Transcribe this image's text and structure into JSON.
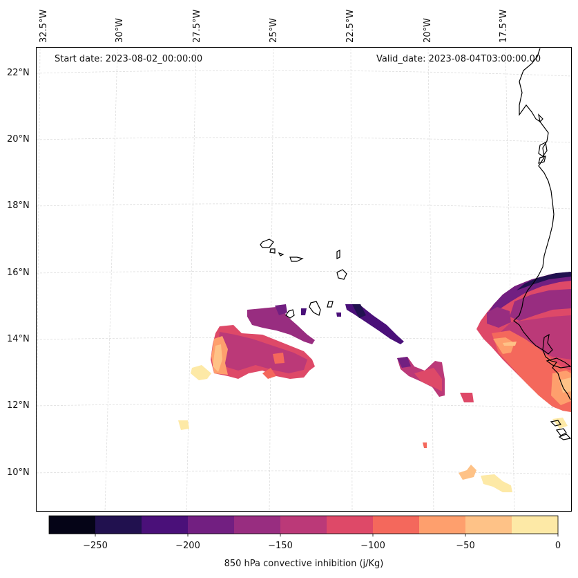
{
  "header": {
    "start_date": "Start date: 2023-08-02_00:00:00",
    "valid_date": "Valid_date: 2023-08-04T03:00:00.00"
  },
  "longitude_labels": [
    "32.5°W",
    "30°W",
    "27.5°W",
    "25°W",
    "22.5°W",
    "20°W",
    "17.5°W"
  ],
  "latitude_labels": [
    "22°N",
    "20°N",
    "18°N",
    "16°N",
    "14°N",
    "12°N",
    "10°N"
  ],
  "colorbar": {
    "title": "850 hPa convective inhibition (j/Kg)",
    "tick_labels": [
      "−250",
      "−200",
      "−150",
      "−100",
      "−50",
      "0"
    ],
    "bins": [
      {
        "min": -275,
        "max": -250,
        "color": "#050417"
      },
      {
        "min": -250,
        "max": -225,
        "color": "#21114f"
      },
      {
        "min": -225,
        "max": -200,
        "color": "#4a1079"
      },
      {
        "min": -200,
        "max": -175,
        "color": "#721f81"
      },
      {
        "min": -175,
        "max": -150,
        "color": "#982d80"
      },
      {
        "min": -150,
        "max": -125,
        "color": "#bb3978"
      },
      {
        "min": -125,
        "max": -100,
        "color": "#de4968"
      },
      {
        "min": -100,
        "max": -75,
        "color": "#f4685c"
      },
      {
        "min": -75,
        "max": -50,
        "color": "#fe9f6d"
      },
      {
        "min": -50,
        "max": -25,
        "color": "#fec287"
      },
      {
        "min": -25,
        "max": 0,
        "color": "#fde9a6"
      }
    ]
  },
  "colors": {
    "coastline": "#000000",
    "gridline": "#cccccc"
  }
}
